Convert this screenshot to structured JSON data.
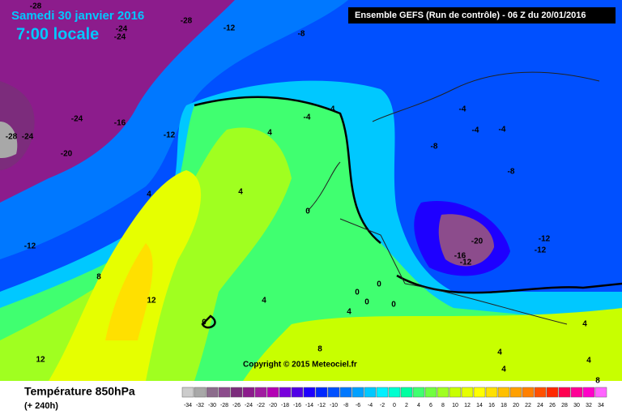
{
  "header": {
    "date": "Samedi 30 janvier 2016",
    "time": "7:00 locale",
    "run": "Ensemble GEFS  (Run de contrôle)  - 06 Z du 20/01/2016"
  },
  "copyright": "Copyright © 2015 Meteociel.fr",
  "legend": {
    "title": "Température 850hPa",
    "lead": "(+ 240h)",
    "scale_labels": [
      -34,
      -32,
      -30,
      -28,
      -26,
      -24,
      -22,
      -20,
      -18,
      -16,
      -14,
      -12,
      -10,
      -8,
      -6,
      -4,
      -2,
      0,
      2,
      4,
      6,
      8,
      10,
      12,
      14,
      16,
      18,
      20,
      22,
      24,
      26,
      28,
      30,
      32,
      34
    ],
    "scale_colors": [
      "#cccccc",
      "#a8a8a8",
      "#8c6c8c",
      "#8c4c8c",
      "#7c2c7c",
      "#8c1c8c",
      "#a01ca0",
      "#b400b4",
      "#7800dc",
      "#5000e6",
      "#1e00ff",
      "#0028ff",
      "#0050ff",
      "#0078ff",
      "#00a0ff",
      "#00c8ff",
      "#00f0ff",
      "#00ffd0",
      "#00ffa0",
      "#40ff70",
      "#70ff40",
      "#a0ff20",
      "#c8ff00",
      "#e6ff00",
      "#ffff00",
      "#ffe000",
      "#ffc000",
      "#ffa000",
      "#ff8000",
      "#ff5000",
      "#ff2800",
      "#ff0050",
      "#ff0096",
      "#ff00c8",
      "#ff64ff"
    ]
  },
  "contour_labels": [
    -28,
    -28,
    -24,
    -24,
    -12,
    -8,
    -24,
    -16,
    -28,
    -24,
    -12,
    -20,
    -4,
    -4,
    -4,
    -4,
    -4,
    4,
    -8,
    -8,
    4,
    4,
    0,
    -12,
    -20,
    -12,
    -12,
    -16,
    -12,
    8,
    12,
    4,
    0,
    0,
    0,
    0,
    4,
    0,
    8,
    4,
    4,
    4,
    12,
    4,
    8
  ]
}
